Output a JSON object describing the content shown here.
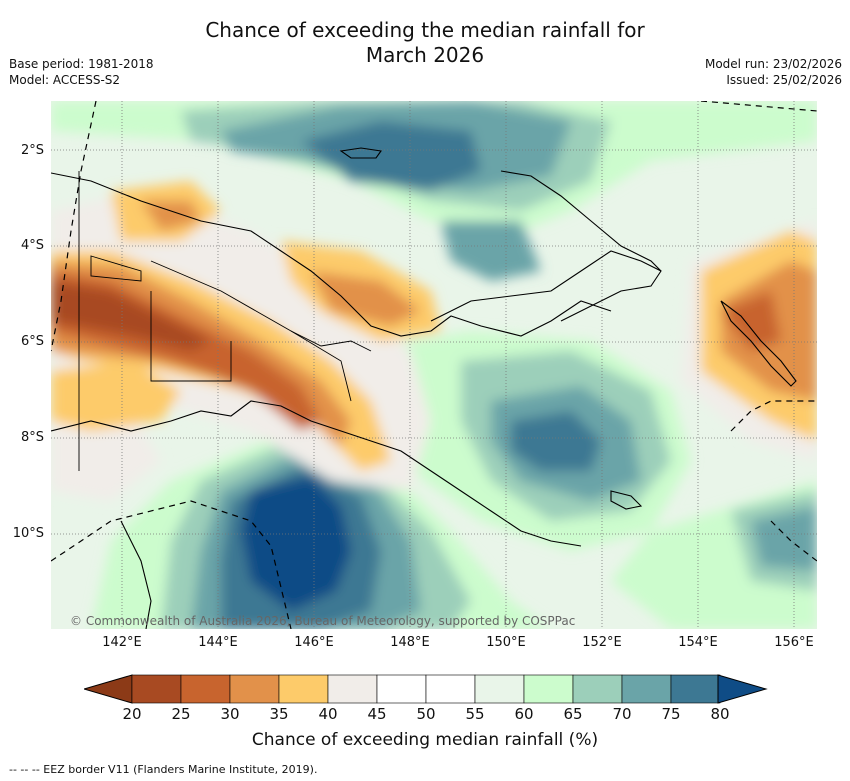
{
  "header": {
    "title_line1": "Chance of exceeding the median rainfall for",
    "title_line2": "March 2026",
    "base_period": "Base period: 1981-2018",
    "model": "Model: ACCESS-S2",
    "model_run": "Model run: 23/02/2026",
    "issued": "Issued: 25/02/2026"
  },
  "map": {
    "lon_ticks": [
      "142°E",
      "144°E",
      "146°E",
      "148°E",
      "150°E",
      "152°E",
      "154°E",
      "156°E"
    ],
    "lat_ticks": [
      "2°S",
      "4°S",
      "6°S",
      "8°S",
      "10°S"
    ],
    "copyright": "© Commonwealth of Australia 2026, Bureau of Meteorology, supported by COSPPac"
  },
  "colorbar": {
    "ticks": [
      "20",
      "25",
      "30",
      "35",
      "40",
      "45",
      "50",
      "55",
      "60",
      "65",
      "70",
      "75",
      "80"
    ],
    "colors": [
      "#a84a22",
      "#c8642e",
      "#e2914a",
      "#fdcb6a",
      "#f1ede9",
      "#ffffff",
      "#ffffff",
      "#e9f5e9",
      "#ccfccd",
      "#9ccfba",
      "#6aa4a8",
      "#3d7893"
    ],
    "low_color": "#8c3a17",
    "high_color": "#0f4c86",
    "label": "Chance of exceeding median rainfall (%)"
  },
  "legend_note": "--  --  -- EEZ border V11 (Flanders Marine Institute, 2019)."
}
